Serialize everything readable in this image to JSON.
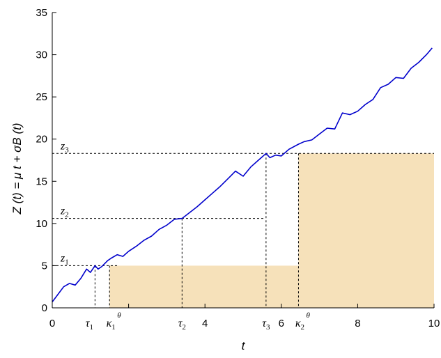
{
  "chart_data": {
    "type": "line",
    "xlabel": "t",
    "ylabel": "Z (t) = μ t + σB (t)",
    "xlim": [
      0,
      10
    ],
    "ylim": [
      0,
      35
    ],
    "xticks": [
      0,
      2,
      4,
      6,
      8,
      10
    ],
    "yticks": [
      0,
      5,
      10,
      15,
      20,
      25,
      30,
      35
    ],
    "xtick_labels_shown": [
      "0",
      "4",
      "6",
      "8",
      "10"
    ],
    "grid": false,
    "levels": [
      {
        "label": "z",
        "sub": "1",
        "value": 5.0
      },
      {
        "label": "z",
        "sub": "2",
        "value": 10.6
      },
      {
        "label": "z",
        "sub": "3",
        "value": 18.3
      }
    ],
    "times": [
      {
        "label": "τ",
        "sub": "1",
        "sup": "",
        "value": 1.12
      },
      {
        "label": "κ",
        "sub": "1",
        "sup": "θ",
        "value": 1.5
      },
      {
        "label": "τ",
        "sub": "2",
        "sup": "",
        "value": 3.4
      },
      {
        "label": "τ",
        "sub": "3",
        "sup": "",
        "value": 5.6
      },
      {
        "label": "κ",
        "sub": "2",
        "sup": "θ",
        "value": 6.45
      }
    ],
    "shaded_regions": [
      {
        "x": [
          1.5,
          6.45
        ],
        "y": [
          0,
          5.0
        ]
      },
      {
        "x": [
          6.45,
          10
        ],
        "y": [
          0,
          18.3
        ]
      }
    ],
    "series": [
      {
        "color": "#0000cc",
        "x": [
          0,
          0.15,
          0.3,
          0.45,
          0.6,
          0.75,
          0.9,
          1.0,
          1.12,
          1.2,
          1.3,
          1.45,
          1.55,
          1.7,
          1.85,
          2.0,
          2.2,
          2.4,
          2.6,
          2.8,
          3.0,
          3.2,
          3.4,
          3.6,
          3.8,
          4.0,
          4.2,
          4.4,
          4.6,
          4.8,
          5.0,
          5.2,
          5.4,
          5.6,
          5.7,
          5.85,
          6.0,
          6.2,
          6.45,
          6.6,
          6.8,
          7.0,
          7.2,
          7.4,
          7.6,
          7.8,
          8.0,
          8.2,
          8.4,
          8.6,
          8.8,
          9.0,
          9.2,
          9.4,
          9.6,
          9.8,
          9.95
        ],
        "y": [
          0.7,
          1.6,
          2.5,
          2.9,
          2.7,
          3.5,
          4.6,
          4.2,
          5.0,
          4.6,
          4.9,
          5.6,
          5.9,
          6.3,
          6.1,
          6.7,
          7.3,
          8.0,
          8.5,
          9.3,
          9.8,
          10.5,
          10.6,
          11.3,
          12.0,
          12.8,
          13.6,
          14.4,
          15.3,
          16.2,
          15.6,
          16.7,
          17.5,
          18.3,
          17.8,
          18.1,
          18.0,
          18.8,
          19.4,
          19.7,
          19.9,
          20.6,
          21.3,
          21.2,
          23.1,
          22.9,
          23.3,
          24.1,
          24.7,
          26.1,
          26.5,
          27.3,
          27.2,
          28.4,
          29.1,
          30.0,
          30.8
        ]
      }
    ]
  }
}
